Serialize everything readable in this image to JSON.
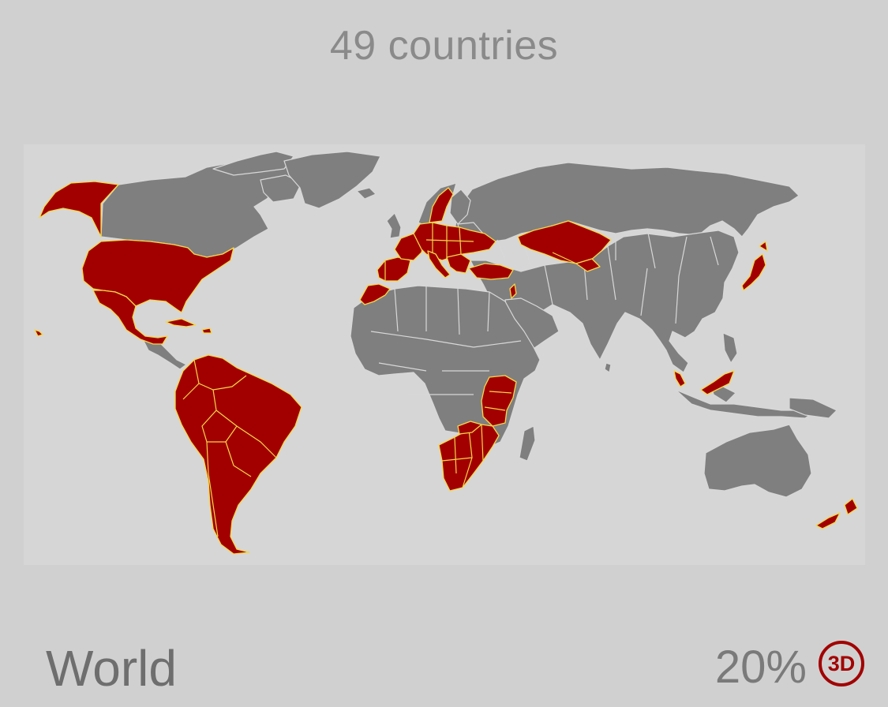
{
  "header": {
    "count_label": "49 countries"
  },
  "footer": {
    "region_label": "World",
    "percent_label": "20%",
    "view_toggle_label": "3D"
  },
  "map": {
    "visited_count": 49,
    "visited_fraction": 0.2
  },
  "colors": {
    "background": "#d0d0d0",
    "land": "#7f7f7f",
    "visited": "#a20000",
    "visited_border": "#f2d84a",
    "text": "#8a8a8a"
  }
}
